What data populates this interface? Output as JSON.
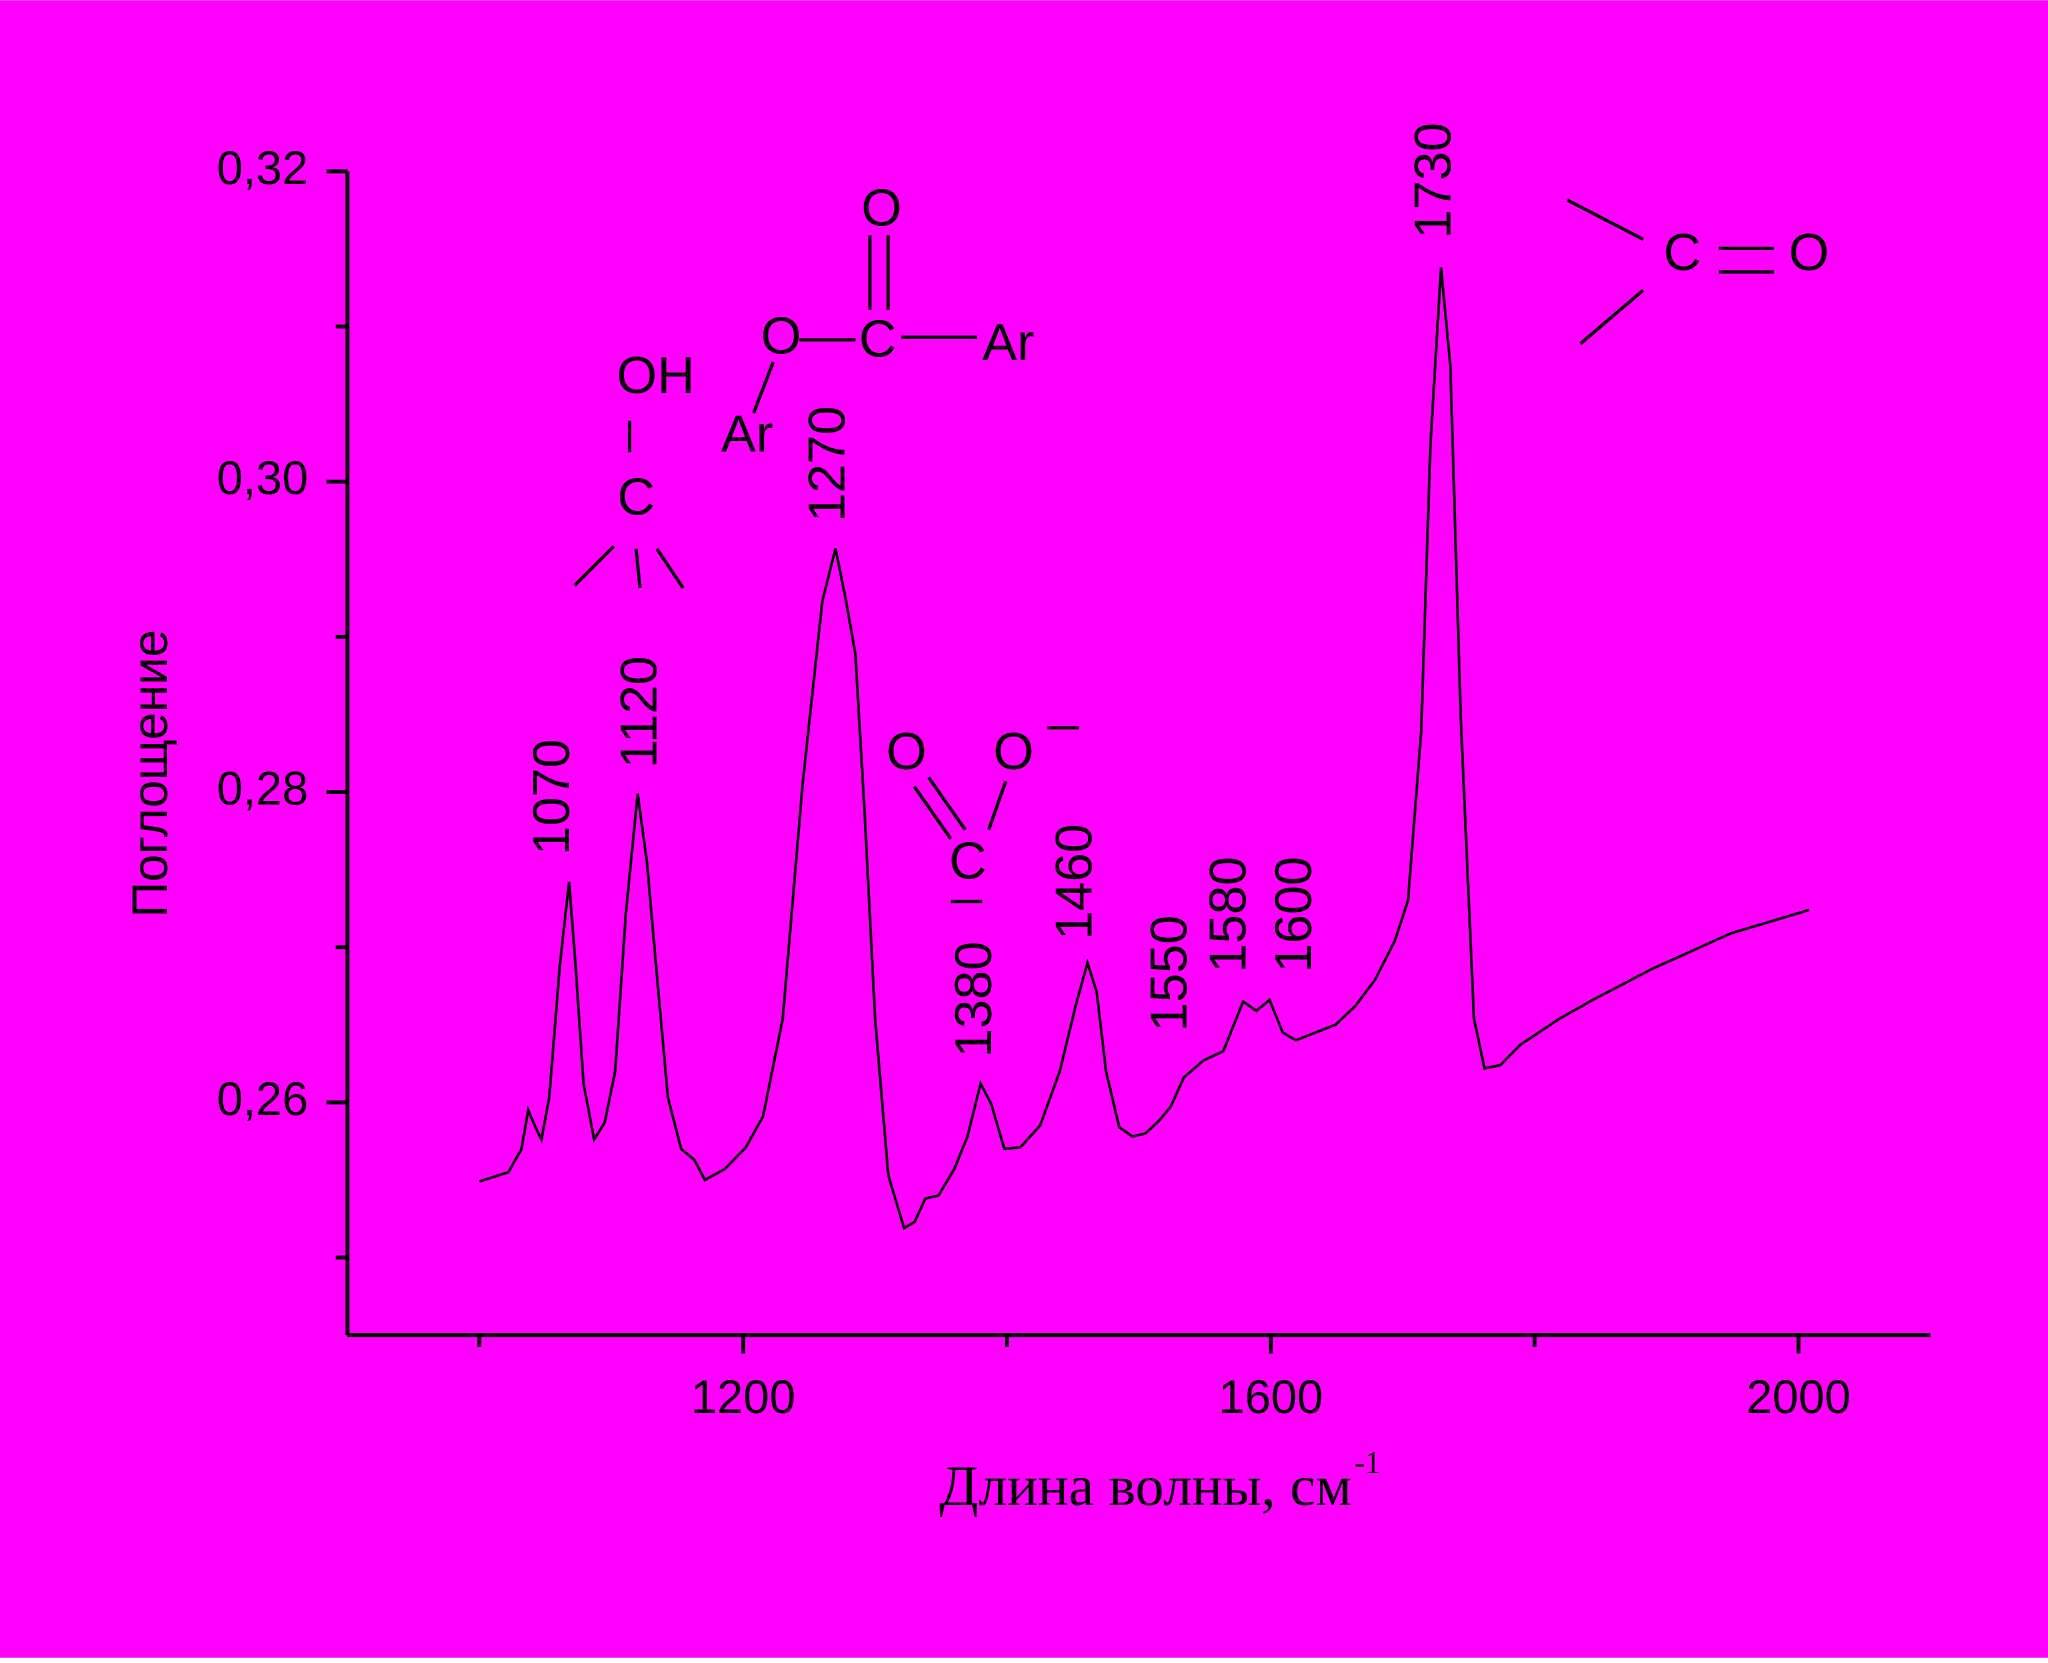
{
  "chart_data": {
    "type": "line",
    "ylabel": "Поглощение",
    "xlabel": "Длина волны, см",
    "xlabel_sup": "-1",
    "xlim": [
      900,
      2100
    ],
    "xticks": [
      1200,
      1600,
      2000
    ],
    "xminorticks": [
      1000,
      1400,
      1800
    ],
    "ylim": [
      0.245,
      0.32
    ],
    "yticks": [
      {
        "value": 0.26,
        "label": "0,26"
      },
      {
        "value": 0.28,
        "label": "0,28"
      },
      {
        "value": 0.3,
        "label": "0,30"
      },
      {
        "value": 0.32,
        "label": "0,32"
      }
    ],
    "yminorticks": [
      0.25,
      0.27,
      0.29,
      0.31
    ],
    "color": "#000000",
    "background": "#ff00ff",
    "x": [
      1000,
      1022,
      1032,
      1037,
      1042,
      1047,
      1053,
      1061,
      1068,
      1073,
      1079,
      1087,
      1095,
      1103,
      1111,
      1120,
      1127,
      1134,
      1143,
      1153,
      1163,
      1171,
      1186,
      1202,
      1215,
      1230,
      1245,
      1260,
      1270,
      1278,
      1285,
      1292,
      1300,
      1310,
      1322,
      1330,
      1338,
      1348,
      1360,
      1370,
      1380,
      1388,
      1398,
      1410,
      1425,
      1440,
      1452,
      1461,
      1468,
      1475,
      1485,
      1495,
      1505,
      1515,
      1524,
      1534,
      1549,
      1564,
      1579,
      1589,
      1599,
      1609,
      1619,
      1634,
      1649,
      1664,
      1679,
      1694,
      1704,
      1714,
      1721,
      1729,
      1736,
      1744,
      1754,
      1762,
      1774,
      1789,
      1819,
      1844,
      1889,
      1949,
      2008
    ],
    "values": [
      0.2549,
      0.2555,
      0.257,
      0.2595,
      0.2585,
      0.2576,
      0.2603,
      0.2688,
      0.2742,
      0.2688,
      0.2612,
      0.2576,
      0.2587,
      0.262,
      0.2721,
      0.2799,
      0.2755,
      0.2688,
      0.2603,
      0.257,
      0.2563,
      0.255,
      0.2557,
      0.2571,
      0.2591,
      0.2654,
      0.2805,
      0.2923,
      0.2957,
      0.2923,
      0.2889,
      0.2788,
      0.2654,
      0.2553,
      0.2519,
      0.2523,
      0.2538,
      0.254,
      0.2557,
      0.2578,
      0.2612,
      0.2599,
      0.257,
      0.2571,
      0.2585,
      0.262,
      0.2662,
      0.269,
      0.2671,
      0.262,
      0.2584,
      0.2578,
      0.258,
      0.2588,
      0.2597,
      0.2616,
      0.2627,
      0.2633,
      0.2665,
      0.2659,
      0.2666,
      0.2645,
      0.264,
      0.2645,
      0.265,
      0.2662,
      0.2679,
      0.2704,
      0.273,
      0.2839,
      0.3024,
      0.3138,
      0.3075,
      0.2848,
      0.2654,
      0.2622,
      0.2624,
      0.2637,
      0.2654,
      0.2666,
      0.2686,
      0.2709,
      0.2724
    ],
    "peak_labels": [
      "1070",
      "1120",
      "1270",
      "1380",
      "1460",
      "1550",
      "1580",
      "1600",
      "1730"
    ],
    "structures": [
      [
        "OH",
        "C"
      ],
      [
        "O",
        "C",
        "O",
        "Ar",
        "Ar"
      ],
      [
        "O",
        "O",
        "C"
      ],
      [
        "C",
        "O"
      ]
    ]
  }
}
